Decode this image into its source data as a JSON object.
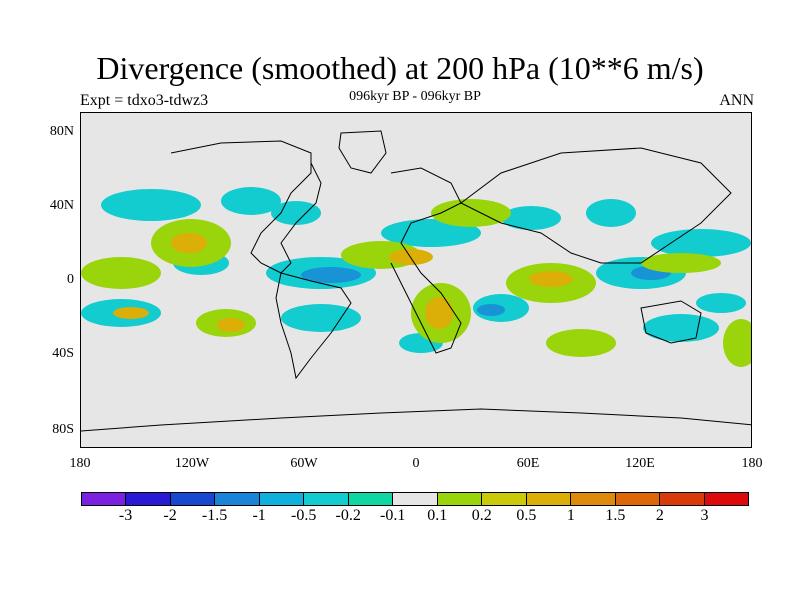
{
  "title": "Divergence (smoothed) at 200 hPa (10**6 m/s)",
  "subtitle_left": "Expt = tdxo3-tdwz3",
  "subtitle_center": "096kyr BP - 096kyr BP",
  "subtitle_right": "ANN",
  "lat_labels": [
    "80N",
    "40N",
    "0",
    "40S",
    "80S"
  ],
  "lon_labels": [
    "180",
    "120W",
    "60W",
    "0",
    "60E",
    "120E",
    "180"
  ],
  "colorbar": {
    "colors": [
      "#7a22e0",
      "#2a1ad6",
      "#1848d0",
      "#1a84d6",
      "#10b0dc",
      "#12ccd0",
      "#10d6a2",
      "#e6e6e6",
      "#9ad40a",
      "#c8ca0a",
      "#dcae08",
      "#de8a0a",
      "#dc6608",
      "#d83a0a",
      "#dc0a0a"
    ],
    "labels": [
      "-3",
      "-2",
      "-1.5",
      "-1",
      "-0.5",
      "-0.2",
      "-0.1",
      "0.1",
      "0.2",
      "0.5",
      "1",
      "1.5",
      "2",
      "3"
    ]
  }
}
